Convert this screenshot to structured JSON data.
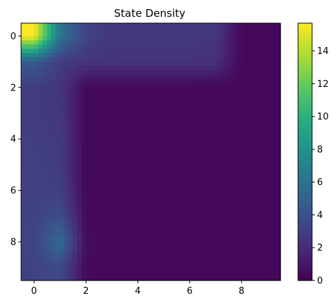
{
  "chart_data": {
    "type": "heatmap",
    "title": "State Density",
    "xlabel": "",
    "ylabel": "",
    "x_ticks": [
      0,
      2,
      4,
      6,
      8
    ],
    "y_ticks": [
      0,
      2,
      4,
      6,
      8
    ],
    "colorbar_ticks": [
      0,
      2,
      4,
      6,
      8,
      10,
      12,
      14
    ],
    "colorbar_range": [
      0,
      15.7
    ],
    "colormap": "viridis",
    "interpolation": "bilinear",
    "grid": false,
    "rows": 10,
    "cols": 10,
    "values": [
      [
        15.7,
        6.0,
        3.2,
        2.6,
        2.6,
        2.6,
        2.6,
        2.5,
        0.3,
        0.3
      ],
      [
        4.5,
        2.8,
        2.4,
        2.3,
        2.3,
        2.3,
        2.3,
        2.2,
        0.3,
        0.3
      ],
      [
        2.8,
        2.5,
        0.3,
        0.3,
        0.3,
        0.3,
        0.3,
        0.3,
        0.3,
        0.3
      ],
      [
        2.8,
        2.6,
        0.3,
        0.3,
        0.3,
        0.3,
        0.3,
        0.3,
        0.3,
        0.3
      ],
      [
        2.9,
        2.7,
        0.3,
        0.3,
        0.3,
        0.3,
        0.3,
        0.3,
        0.3,
        0.3
      ],
      [
        3.0,
        2.8,
        0.3,
        0.3,
        0.3,
        0.3,
        0.3,
        0.3,
        0.3,
        0.3
      ],
      [
        3.0,
        3.0,
        0.3,
        0.3,
        0.3,
        0.3,
        0.3,
        0.3,
        0.3,
        0.3
      ],
      [
        3.1,
        3.8,
        0.4,
        0.3,
        0.3,
        0.3,
        0.3,
        0.3,
        0.3,
        0.3
      ],
      [
        3.2,
        5.5,
        0.5,
        0.3,
        0.3,
        0.3,
        0.3,
        0.3,
        0.3,
        0.3
      ],
      [
        3.1,
        3.6,
        0.4,
        0.3,
        0.3,
        0.3,
        0.3,
        0.3,
        0.3,
        0.3
      ]
    ]
  }
}
